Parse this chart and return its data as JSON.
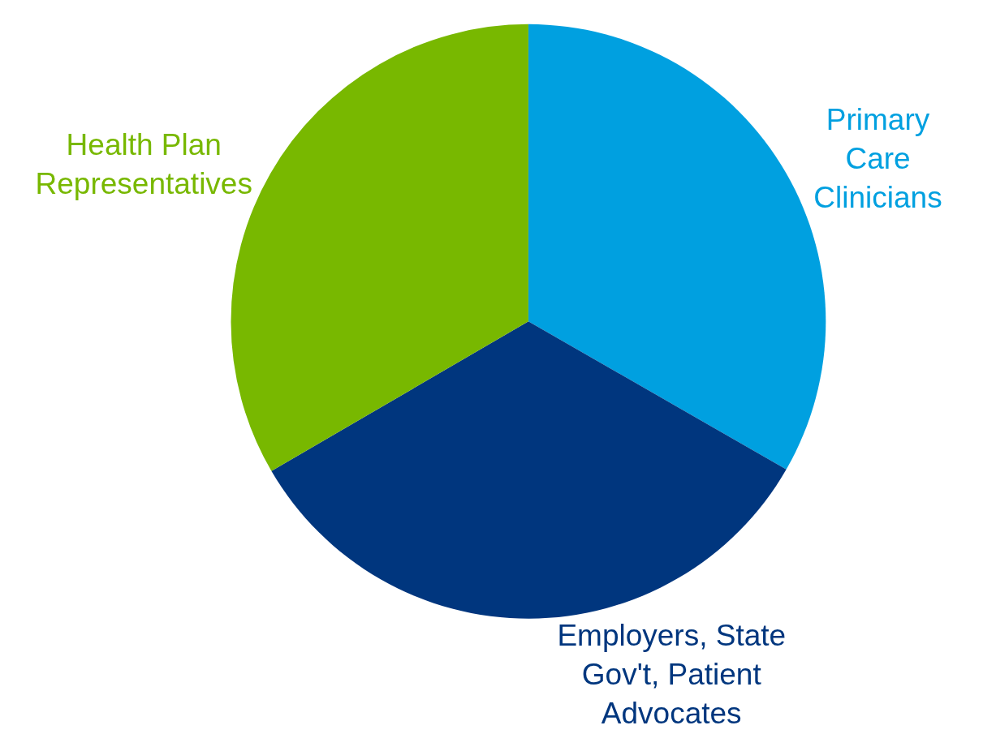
{
  "chart_data": {
    "type": "pie",
    "categories": [
      "Primary\nCare\nClinicians",
      "Employers, State\nGov't, Patient\nAdvocates",
      "Health Plan\nRepresentatives"
    ],
    "values": [
      33.3,
      33.3,
      33.4
    ],
    "colors": [
      "#00a0e0",
      "#00367e",
      "#78b800"
    ],
    "legend": false
  }
}
